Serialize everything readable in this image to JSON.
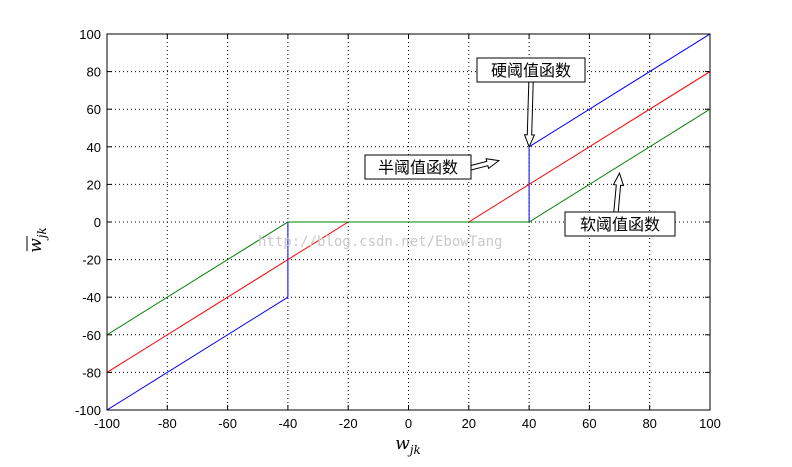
{
  "chart_data": {
    "type": "line",
    "xlabel": "w_jk",
    "ylabel": "w̄_jk",
    "xlim": [
      -100,
      100
    ],
    "ylim": [
      -100,
      100
    ],
    "x_ticks": [
      -100,
      -80,
      -60,
      -40,
      -20,
      0,
      20,
      40,
      60,
      80,
      100
    ],
    "y_ticks": [
      -100,
      -80,
      -60,
      -40,
      -20,
      0,
      20,
      40,
      60,
      80,
      100
    ],
    "grid": true,
    "grid_style": "dotted",
    "series": [
      {
        "color": "#0000ff",
        "x": [
          -100,
          -40,
          -40,
          40,
          40,
          100
        ],
        "y": [
          -100,
          -40,
          0,
          0,
          40,
          100
        ]
      },
      {
        "color": "#ff0000",
        "x": [
          -100,
          -20,
          20,
          100
        ],
        "y": [
          -80,
          0,
          0,
          80
        ]
      },
      {
        "color": "#008000",
        "x": [
          -100,
          -40,
          40,
          100
        ],
        "y": [
          -60,
          0,
          0,
          60
        ]
      }
    ],
    "annotations": [
      {
        "text": "硬阈值函数",
        "points_to": [
          40,
          40
        ]
      },
      {
        "text": "半阈值函数",
        "points_to": [
          30,
          30
        ]
      },
      {
        "text": "软阈值函数",
        "points_to": [
          70,
          26
        ]
      }
    ],
    "watermark": "http://blog.csdn.net/EbowTang"
  }
}
